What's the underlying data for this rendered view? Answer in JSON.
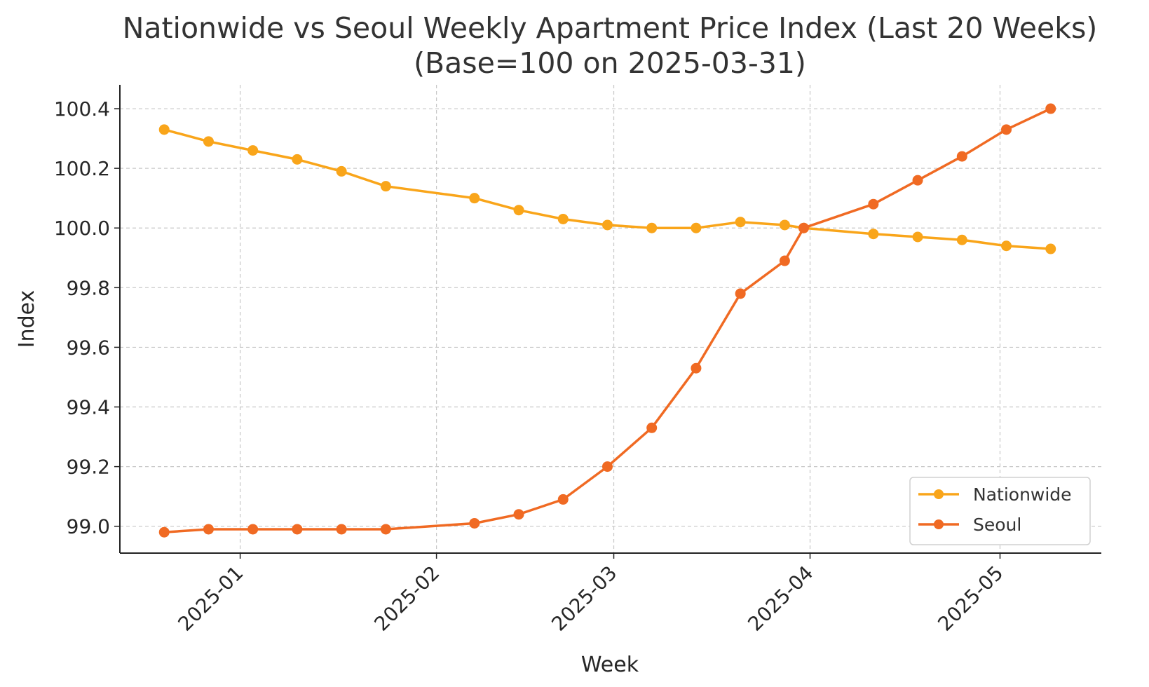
{
  "chart_data": {
    "type": "line",
    "title": "Nationwide vs Seoul Weekly Apartment Price Index (Last 20 Weeks)",
    "subtitle": "(Base=100 on 2025-03-31)",
    "xlabel": "Week",
    "ylabel": "Index",
    "ylim": [
      98.91,
      100.48
    ],
    "xlim": [
      "2024-12-13",
      "2025-05-17"
    ],
    "y_ticks": [
      99.0,
      99.2,
      99.4,
      99.6,
      99.8,
      100.0,
      100.2,
      100.4
    ],
    "y_tick_labels": [
      "99.0",
      "99.2",
      "99.4",
      "99.6",
      "99.8",
      "100.0",
      "100.2",
      "100.4"
    ],
    "x_ticks": [
      "2025-01-01",
      "2025-02-01",
      "2025-03-01",
      "2025-04-01",
      "2025-05-01"
    ],
    "x_tick_labels": [
      "2025-01",
      "2025-02",
      "2025-03",
      "2025-04",
      "2025-05"
    ],
    "grid": true,
    "legend_position": "lower-right",
    "x": [
      "2024-12-20",
      "2024-12-27",
      "2025-01-03",
      "2025-01-10",
      "2025-01-17",
      "2025-01-24",
      "2025-02-07",
      "2025-02-14",
      "2025-02-21",
      "2025-02-28",
      "2025-03-07",
      "2025-03-14",
      "2025-03-21",
      "2025-03-28",
      "2025-03-31",
      "2025-04-11",
      "2025-04-18",
      "2025-04-25",
      "2025-05-02",
      "2025-05-09"
    ],
    "series": [
      {
        "name": "Nationwide",
        "color": "#F9A51A",
        "values": [
          100.33,
          100.29,
          100.26,
          100.23,
          100.19,
          100.14,
          100.1,
          100.06,
          100.03,
          100.01,
          100.0,
          100.0,
          100.02,
          100.01,
          100.0,
          99.98,
          99.97,
          99.96,
          99.94,
          99.93
        ]
      },
      {
        "name": "Seoul",
        "color": "#F06A23",
        "values": [
          98.98,
          98.99,
          98.99,
          98.99,
          98.99,
          98.99,
          99.01,
          99.04,
          99.09,
          99.2,
          99.33,
          99.53,
          99.78,
          99.89,
          100.0,
          100.08,
          100.16,
          100.24,
          100.33,
          100.4
        ]
      }
    ]
  }
}
